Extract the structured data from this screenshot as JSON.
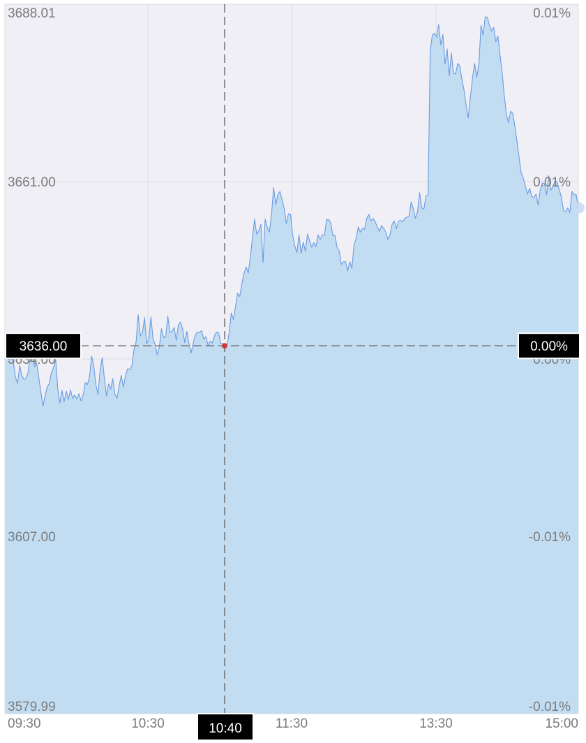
{
  "chart_data": {
    "type": "area",
    "y_left_labels": [
      "3688.01",
      "3661.00",
      "3634.00",
      "3607.00",
      "3579.99"
    ],
    "y_right_labels": [
      "0.01%",
      "0.01%",
      "0.00%",
      "-0.01%",
      "-0.01%"
    ],
    "y_ticks": [
      3688.01,
      3661.0,
      3634.0,
      3607.0,
      3579.99
    ],
    "ylim": [
      3579.99,
      3688.01
    ],
    "x_ticks": [
      "09:30",
      "10:30",
      "11:30",
      "13:30",
      "15:00"
    ],
    "series": [
      {
        "values": [
          3634.0,
          3635.0,
          3633.8,
          3634.6,
          3633.5,
          3631.2,
          3630.3,
          3633.0,
          3631.5,
          3630.9,
          3631.0,
          3632.0,
          3634.5,
          3634.7,
          3632.8,
          3633.4,
          3631.2,
          3629.0,
          3626.8,
          3628.4,
          3629.7,
          3630.3,
          3631.9,
          3632.7,
          3634.0,
          3629.4,
          3627.3,
          3629.2,
          3627.5,
          3629.1,
          3627.8,
          3629.3,
          3628.0,
          3628.5,
          3627.9,
          3628.7,
          3627.6,
          3628.5,
          3630.4,
          3630.1,
          3631.3,
          3634.4,
          3633.0,
          3630.1,
          3628.6,
          3632.3,
          3634.2,
          3631.1,
          3628.4,
          3630.2,
          3629.4,
          3631.0,
          3628.6,
          3628.0,
          3629.9,
          3631.5,
          3629.7,
          3631.4,
          3632.5,
          3632.4,
          3632.9,
          3635.4,
          3636.6,
          3640.7,
          3637.5,
          3638.0,
          3640.3,
          3636.3,
          3637.0,
          3640.4,
          3637.1,
          3636.2,
          3634.6,
          3635.8,
          3638.6,
          3637.2,
          3637.4,
          3640.5,
          3638.0,
          3638.2,
          3638.8,
          3636.8,
          3639.2,
          3639.6,
          3638.6,
          3636.5,
          3638.2,
          3636.4,
          3634.9,
          3636.4,
          3637.7,
          3638.1,
          3638.0,
          3638.3,
          3637.0,
          3637.4,
          3636.1,
          3636.7,
          3636.4,
          3637.5,
          3638.1,
          3638.0,
          3636.4,
          3636.3,
          3635.8,
          3636.1,
          3638.0,
          3641.0,
          3640.0,
          3642.0,
          3644.0,
          3643.5,
          3645.5,
          3647.0,
          3648.0,
          3647.1,
          3649.4,
          3652.5,
          3655.3,
          3653.0,
          3653.5,
          3654.5,
          3648.7,
          3655.3,
          3654.0,
          3653.3,
          3656.0,
          3660.1,
          3657.5,
          3659.0,
          3659.5,
          3658.2,
          3656.9,
          3654.6,
          3656.1,
          3656.0,
          3652.8,
          3651.2,
          3650.2,
          3652.9,
          3650.1,
          3651.8,
          3650.4,
          3653.0,
          3652.0,
          3651.0,
          3651.7,
          3651.1,
          3652.9,
          3652.2,
          3652.9,
          3652.8,
          3655.2,
          3655.2,
          3654.7,
          3652.8,
          3652.8,
          3651.0,
          3650.4,
          3648.4,
          3648.8,
          3648.8,
          3647.4,
          3648.8,
          3647.8,
          3651.4,
          3652.3,
          3654.1,
          3653.3,
          3653.9,
          3653.7,
          3655.4,
          3656.0,
          3655.0,
          3655.4,
          3654.9,
          3654.1,
          3653.4,
          3654.3,
          3653.9,
          3653.3,
          3652.2,
          3652.9,
          3654.5,
          3655.0,
          3653.8,
          3655.0,
          3655.1,
          3654.9,
          3655.4,
          3655.6,
          3655.7,
          3657.9,
          3656.9,
          3655.4,
          3656.4,
          3659.3,
          3657.0,
          3656.8,
          3658.8,
          3659.0,
          3680.9,
          3683.3,
          3683.6,
          3683.0,
          3684.9,
          3681.8,
          3683.4,
          3678.9,
          3681.2,
          3677.1,
          3680.6,
          3677.5,
          3677.4,
          3679.0,
          3678.6,
          3676.5,
          3674.9,
          3672.6,
          3670.7,
          3673.9,
          3676.8,
          3679.0,
          3676.9,
          3678.8,
          3684.8,
          3683.3,
          3686.1,
          3686.0,
          3684.8,
          3683.9,
          3684.5,
          3682.3,
          3683.2,
          3680.3,
          3677.6,
          3674.1,
          3671.3,
          3670.0,
          3671.7,
          3671.4,
          3669.5,
          3667.1,
          3664.7,
          3662.3,
          3661.5,
          3660.3,
          3659.1,
          3660.0,
          3658.7,
          3658.6,
          3659.1,
          3657.4,
          3659.7,
          3660.8,
          3660.7,
          3659.0,
          3661.9,
          3659.7,
          3660.2,
          3661.1,
          3660.9,
          3659.8,
          3658.6,
          3656.6,
          3656.4,
          3657.0,
          3656.3,
          3659.5,
          3659.0,
          3659.0,
          3657.0
        ]
      }
    ],
    "crosshair": {
      "price_label": "3636.00",
      "pct_label": "0.00%",
      "time_label": "10:40",
      "value": 3636.0,
      "index": 64
    },
    "grid": true,
    "colors": {
      "background": "#f0eff5",
      "fill": "#c2ddf2",
      "line": "#6a9be2",
      "grid": "#dcdce0",
      "axis_text": "#7b7b7b",
      "crosshair": "#666666",
      "tag_bg": "#000000",
      "tag_text": "#ffffff",
      "marker": "#cc3a3a",
      "end_dot": "#c9d9f4"
    }
  }
}
